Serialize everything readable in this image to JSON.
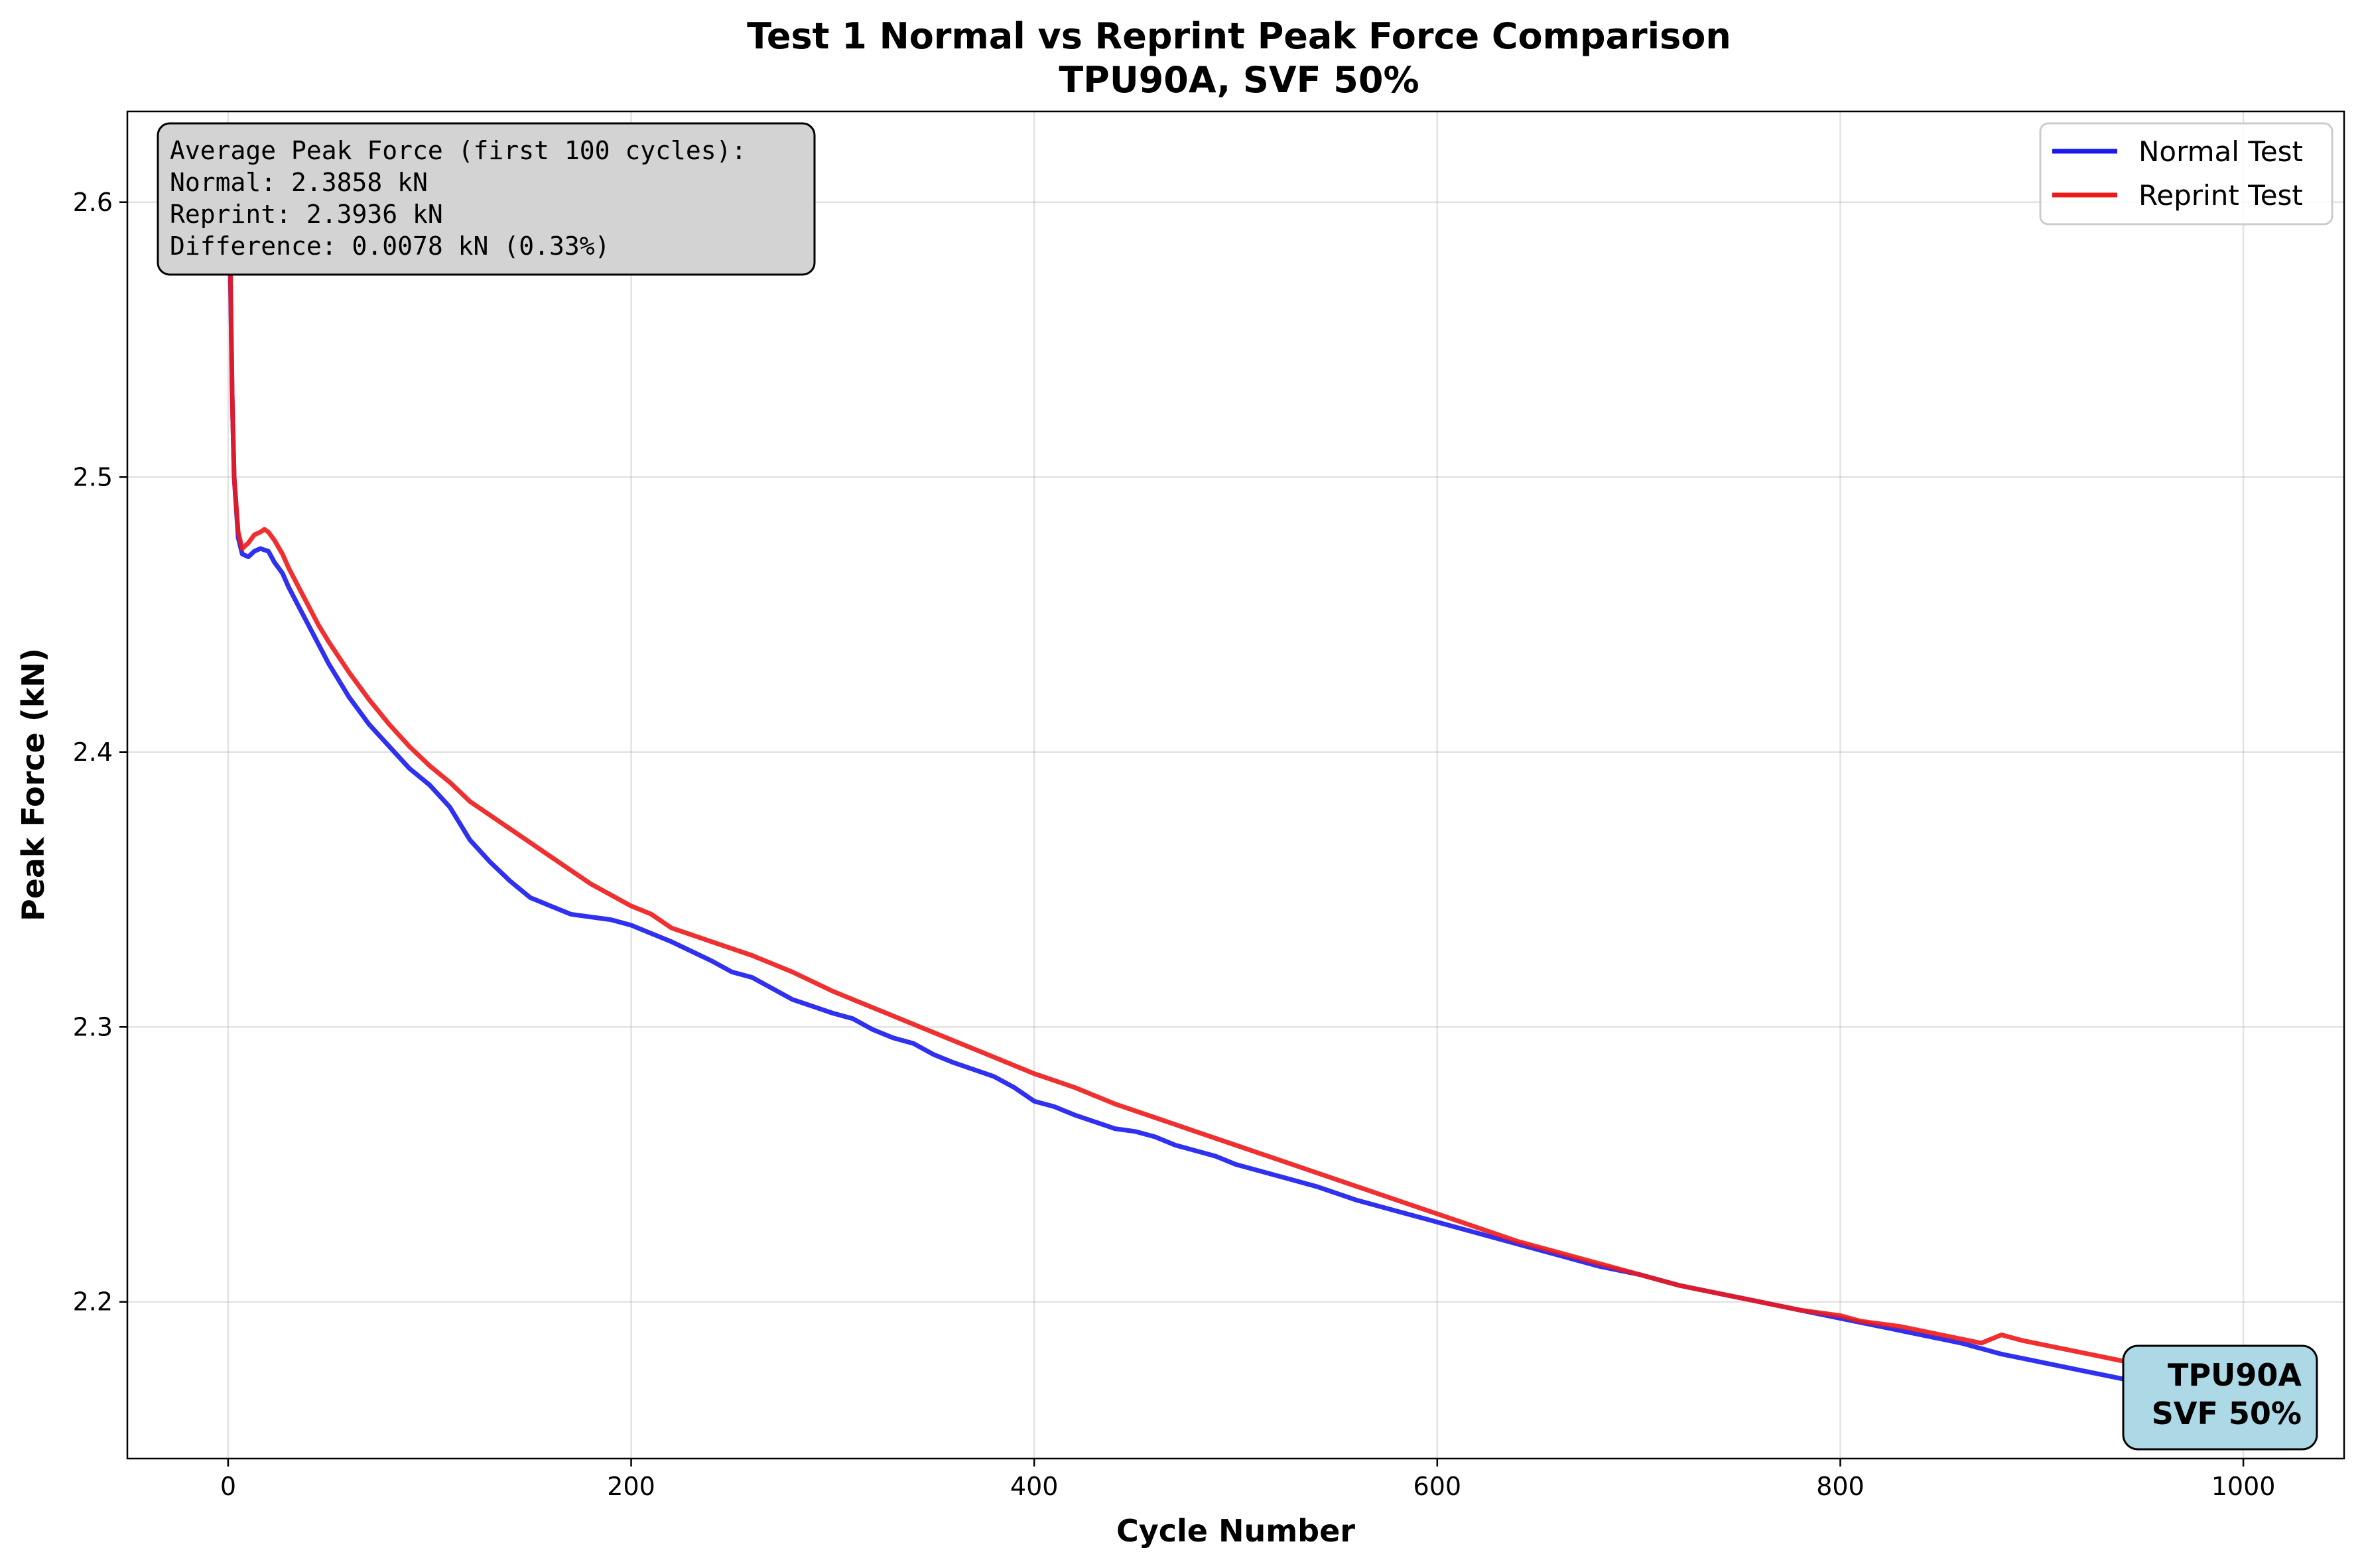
{
  "chart_data": {
    "type": "line",
    "title": "Test 1 Normal vs Reprint Peak Force Comparison",
    "subtitle": "TPU90A, SVF 50%",
    "xlabel": "Cycle Number",
    "ylabel": "Peak Force (kN)",
    "xlim": [
      -50,
      1050
    ],
    "ylim": [
      2.143,
      2.633
    ],
    "xticks": [
      0,
      200,
      400,
      600,
      800,
      1000
    ],
    "yticks": [
      2.2,
      2.3,
      2.4,
      2.5,
      2.6
    ],
    "xtick_labels": [
      "0",
      "200",
      "400",
      "600",
      "800",
      "1000"
    ],
    "ytick_labels": [
      "2.2",
      "2.3",
      "2.4",
      "2.5",
      "2.6"
    ],
    "grid": true,
    "legend_position": "top-right",
    "series": [
      {
        "name": "Normal Test",
        "color": "#1a1aee",
        "points": [
          [
            0,
            2.6
          ],
          [
            1,
            2.58
          ],
          [
            2,
            2.53
          ],
          [
            3,
            2.5
          ],
          [
            5,
            2.478
          ],
          [
            7,
            2.472
          ],
          [
            10,
            2.471
          ],
          [
            13,
            2.473
          ],
          [
            16,
            2.474
          ],
          [
            20,
            2.473
          ],
          [
            23,
            2.469
          ],
          [
            27,
            2.465
          ],
          [
            30,
            2.46
          ],
          [
            35,
            2.453
          ],
          [
            40,
            2.446
          ],
          [
            45,
            2.439
          ],
          [
            50,
            2.432
          ],
          [
            60,
            2.42
          ],
          [
            70,
            2.41
          ],
          [
            80,
            2.402
          ],
          [
            90,
            2.394
          ],
          [
            100,
            2.388
          ],
          [
            110,
            2.38
          ],
          [
            120,
            2.368
          ],
          [
            130,
            2.36
          ],
          [
            140,
            2.353
          ],
          [
            150,
            2.347
          ],
          [
            160,
            2.344
          ],
          [
            170,
            2.341
          ],
          [
            180,
            2.34
          ],
          [
            190,
            2.339
          ],
          [
            200,
            2.337
          ],
          [
            220,
            2.331
          ],
          [
            240,
            2.324
          ],
          [
            250,
            2.32
          ],
          [
            260,
            2.318
          ],
          [
            270,
            2.314
          ],
          [
            280,
            2.31
          ],
          [
            300,
            2.305
          ],
          [
            310,
            2.303
          ],
          [
            320,
            2.299
          ],
          [
            330,
            2.296
          ],
          [
            340,
            2.294
          ],
          [
            350,
            2.29
          ],
          [
            360,
            2.287
          ],
          [
            380,
            2.282
          ],
          [
            390,
            2.278
          ],
          [
            400,
            2.273
          ],
          [
            410,
            2.271
          ],
          [
            420,
            2.268
          ],
          [
            440,
            2.263
          ],
          [
            450,
            2.262
          ],
          [
            460,
            2.26
          ],
          [
            470,
            2.257
          ],
          [
            490,
            2.253
          ],
          [
            500,
            2.25
          ],
          [
            520,
            2.246
          ],
          [
            540,
            2.242
          ],
          [
            560,
            2.237
          ],
          [
            580,
            2.233
          ],
          [
            600,
            2.229
          ],
          [
            620,
            2.225
          ],
          [
            640,
            2.221
          ],
          [
            660,
            2.217
          ],
          [
            680,
            2.213
          ],
          [
            700,
            2.21
          ],
          [
            720,
            2.206
          ],
          [
            740,
            2.203
          ],
          [
            760,
            2.2
          ],
          [
            780,
            2.197
          ],
          [
            800,
            2.194
          ],
          [
            820,
            2.191
          ],
          [
            840,
            2.188
          ],
          [
            860,
            2.185
          ],
          [
            880,
            2.181
          ],
          [
            900,
            2.178
          ],
          [
            920,
            2.175
          ],
          [
            940,
            2.172
          ],
          [
            960,
            2.17
          ]
        ]
      },
      {
        "name": "Reprint Test",
        "color": "#ee1a1a",
        "points": [
          [
            0,
            2.62
          ],
          [
            1,
            2.585
          ],
          [
            2,
            2.53
          ],
          [
            3,
            2.5
          ],
          [
            5,
            2.48
          ],
          [
            7,
            2.474
          ],
          [
            10,
            2.476
          ],
          [
            13,
            2.479
          ],
          [
            16,
            2.48
          ],
          [
            18,
            2.481
          ],
          [
            20,
            2.48
          ],
          [
            23,
            2.477
          ],
          [
            27,
            2.472
          ],
          [
            30,
            2.467
          ],
          [
            35,
            2.46
          ],
          [
            40,
            2.453
          ],
          [
            45,
            2.446
          ],
          [
            50,
            2.44
          ],
          [
            60,
            2.429
          ],
          [
            70,
            2.419
          ],
          [
            80,
            2.41
          ],
          [
            90,
            2.402
          ],
          [
            100,
            2.395
          ],
          [
            110,
            2.389
          ],
          [
            120,
            2.382
          ],
          [
            130,
            2.377
          ],
          [
            140,
            2.372
          ],
          [
            150,
            2.367
          ],
          [
            160,
            2.362
          ],
          [
            170,
            2.357
          ],
          [
            180,
            2.352
          ],
          [
            190,
            2.348
          ],
          [
            200,
            2.344
          ],
          [
            210,
            2.341
          ],
          [
            220,
            2.336
          ],
          [
            240,
            2.331
          ],
          [
            260,
            2.326
          ],
          [
            280,
            2.32
          ],
          [
            300,
            2.313
          ],
          [
            320,
            2.307
          ],
          [
            340,
            2.301
          ],
          [
            360,
            2.295
          ],
          [
            380,
            2.289
          ],
          [
            400,
            2.283
          ],
          [
            420,
            2.278
          ],
          [
            440,
            2.272
          ],
          [
            460,
            2.267
          ],
          [
            480,
            2.262
          ],
          [
            500,
            2.257
          ],
          [
            520,
            2.252
          ],
          [
            540,
            2.247
          ],
          [
            560,
            2.242
          ],
          [
            580,
            2.237
          ],
          [
            600,
            2.232
          ],
          [
            620,
            2.227
          ],
          [
            640,
            2.222
          ],
          [
            660,
            2.218
          ],
          [
            680,
            2.214
          ],
          [
            700,
            2.21
          ],
          [
            720,
            2.206
          ],
          [
            740,
            2.203
          ],
          [
            760,
            2.2
          ],
          [
            780,
            2.197
          ],
          [
            800,
            2.195
          ],
          [
            810,
            2.193
          ],
          [
            830,
            2.191
          ],
          [
            850,
            2.188
          ],
          [
            870,
            2.185
          ],
          [
            880,
            2.188
          ],
          [
            890,
            2.186
          ],
          [
            910,
            2.183
          ],
          [
            930,
            2.18
          ],
          [
            950,
            2.177
          ],
          [
            960,
            2.176
          ]
        ]
      }
    ],
    "stats_box": {
      "lines": [
        "Average Peak Force (first 100 cycles):",
        "Normal: 2.3858 kN",
        "Reprint: 2.3936 kN",
        "Difference: 0.0078 kN (0.33%)"
      ],
      "background": "#d3d3d3"
    },
    "badge": {
      "lines": [
        "TPU90A",
        "SVF 50%"
      ],
      "background": "#add8e6"
    }
  }
}
